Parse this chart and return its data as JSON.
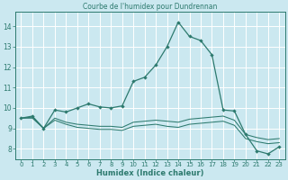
{
  "title": "Courbe de l'humidex pour Dundrennan",
  "xlabel": "Humidex (Indice chaleur)",
  "bg_color": "#cbe8f0",
  "grid_color": "#ffffff",
  "line_color": "#2d7a6e",
  "xlim": [
    -0.5,
    23.5
  ],
  "ylim": [
    7.5,
    14.7
  ],
  "xticks": [
    0,
    1,
    2,
    3,
    4,
    5,
    6,
    7,
    8,
    9,
    10,
    11,
    12,
    13,
    14,
    15,
    16,
    17,
    18,
    19,
    20,
    21,
    22,
    23
  ],
  "yticks": [
    8,
    9,
    10,
    11,
    12,
    13,
    14
  ],
  "series1_x": [
    0,
    1,
    2,
    3,
    4,
    5,
    6,
    7,
    8,
    9,
    10,
    11,
    12,
    13,
    14,
    15,
    16,
    17,
    18,
    19,
    20,
    21,
    22,
    23
  ],
  "series1_y": [
    9.5,
    9.6,
    9.0,
    9.9,
    9.8,
    10.0,
    10.2,
    10.05,
    10.0,
    10.1,
    11.3,
    11.5,
    12.1,
    13.0,
    14.2,
    13.5,
    13.3,
    12.6,
    9.9,
    9.85,
    8.7,
    7.9,
    7.75,
    8.1
  ],
  "series2_x": [
    0,
    1,
    2,
    3,
    4,
    5,
    6,
    7,
    8,
    9,
    10,
    11,
    12,
    13,
    14,
    15,
    16,
    17,
    18,
    19,
    20,
    21,
    22,
    23
  ],
  "series2_y": [
    9.5,
    9.55,
    9.0,
    9.5,
    9.3,
    9.2,
    9.15,
    9.1,
    9.1,
    9.05,
    9.3,
    9.35,
    9.4,
    9.35,
    9.3,
    9.45,
    9.5,
    9.55,
    9.6,
    9.4,
    8.7,
    8.55,
    8.45,
    8.5
  ],
  "series3_x": [
    0,
    1,
    2,
    3,
    4,
    5,
    6,
    7,
    8,
    9,
    10,
    11,
    12,
    13,
    14,
    15,
    16,
    17,
    18,
    19,
    20,
    21,
    22,
    23
  ],
  "series3_y": [
    9.5,
    9.5,
    9.0,
    9.4,
    9.2,
    9.05,
    9.0,
    8.95,
    8.95,
    8.9,
    9.1,
    9.15,
    9.2,
    9.1,
    9.05,
    9.2,
    9.25,
    9.3,
    9.35,
    9.15,
    8.5,
    8.35,
    8.25,
    8.3
  ]
}
